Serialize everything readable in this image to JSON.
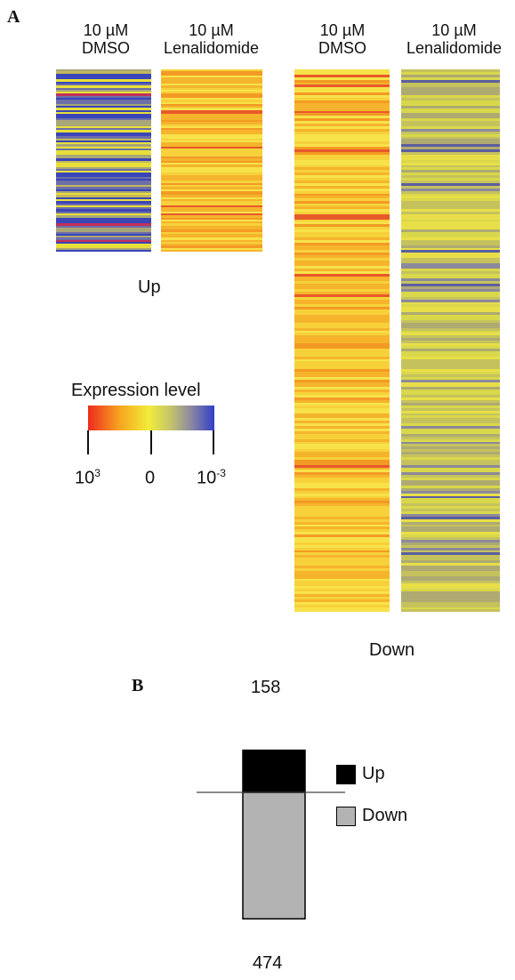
{
  "panels": {
    "a": "A",
    "b": "B"
  },
  "heatmaps": {
    "up_caption": "Up",
    "down_caption": "Down",
    "up_dmso": {
      "line1": "10 µM",
      "line2": "DMSO"
    },
    "up_len": {
      "line1": "10 µM",
      "line2": "Lenalidomide"
    },
    "down_dmso": {
      "line1": "10 µM",
      "line2": "DMSO"
    },
    "down_len": {
      "line1": "10 µM",
      "line2": "Lenalidomide"
    }
  },
  "colorscale": {
    "title": "Expression level",
    "colors": [
      "#ee2a1e",
      "#f7a51f",
      "#f2ec3a",
      "#8a86a2",
      "#3240c6"
    ],
    "ticks": [
      {
        "base": "10",
        "exp": "3"
      },
      {
        "base": "0",
        "exp": ""
      },
      {
        "base": "10",
        "exp": "-3"
      }
    ]
  },
  "chart_data": {
    "type": "bar",
    "categories": [
      "Up",
      "Down"
    ],
    "values": [
      158,
      -474
    ],
    "labels": {
      "top": "158",
      "bottom": "474"
    },
    "legend": [
      {
        "label": "Up",
        "color": "#000000"
      },
      {
        "label": "Down",
        "color": "#b3b3b3"
      }
    ],
    "legend_position": "right"
  }
}
